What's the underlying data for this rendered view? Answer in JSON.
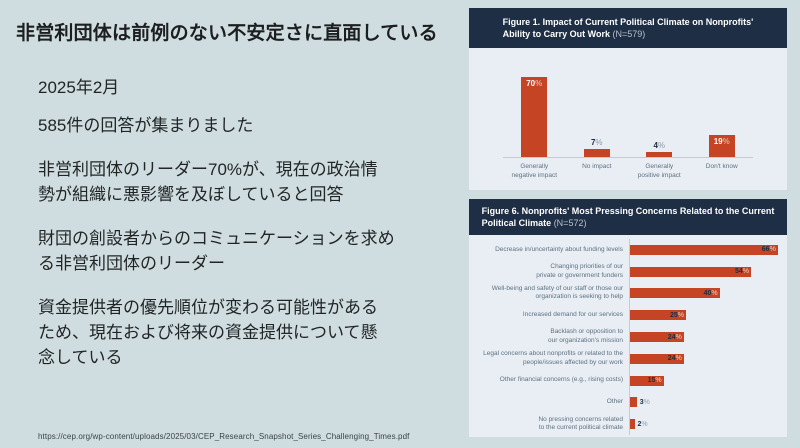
{
  "slide": {
    "title": "非営利団体は前例のない不安定さに直面している",
    "paragraphs": [
      "2025年2月",
      "585件の回答が集まりました",
      "非営利団体のリーダー70%が、現在の政治情\n勢が組織に悪影響を及ぼしていると回答",
      "財団の創設者からのコミュニケーションを求め\nる非営利団体のリーダー",
      "資金提供者の優先順位が変わる可能性がある\nため、現在および将来の資金提供について懸\n念している"
    ],
    "source_url": "https://cep.org/wp-content/uploads/2025/03/CEP_Research_Snapshot_Series_Challenging_Times.pdf"
  },
  "colors": {
    "slide_bg": "#cfdde0",
    "panel_bg": "#e8eef4",
    "header_bg": "#1e2e44",
    "bar_red": "#c54423",
    "muted_label": "#5e7080"
  },
  "chart_data": [
    {
      "id": "figure-1",
      "type": "bar",
      "orientation": "vertical",
      "title_bold": "Figure 1. Impact of Current Political Climate on Nonprofits'\nAbility to Carry Out Work",
      "n_label": " (N=579)",
      "categories": [
        "Generally negative impact",
        "No impact",
        "Generally positive impact",
        "Don't know"
      ],
      "categories_display": [
        "Generally\nnegative impact",
        "No impact",
        "Generally\npositive impact",
        "Don't know"
      ],
      "values": [
        70,
        7,
        4,
        19
      ],
      "unit": "%",
      "ylim": [
        0,
        75
      ],
      "grid": false,
      "bar_color": "#c54423"
    },
    {
      "id": "figure-6",
      "type": "bar",
      "orientation": "horizontal",
      "title_bold": "Figure 6. Nonprofits' Most Pressing Concerns Related to the Current\nPolitical Climate",
      "n_label": " (N=572)",
      "categories": [
        "Decrease in/uncertainty about funding levels",
        "Changing priorities of our private or government funders",
        "Well-being and safety of our staff or those our organization is seeking to help",
        "Increased demand for our services",
        "Backlash or opposition to our organization's mission",
        "Legal concerns about nonprofits or related to the people/issues affected by our work",
        "Other financial concerns (e.g., rising costs)",
        "Other",
        "No pressing concerns related to the current political climate"
      ],
      "categories_display": [
        "Decrease in/uncertainty about funding levels",
        "Changing priorities of our\nprivate or government funders",
        "Well-being and safety of our staff or those our\norganization is seeking to help",
        "Increased demand for our services",
        "Backlash or opposition to\nour organization's mission",
        "Legal concerns about nonprofits or related to the\npeople/issues affected by our work",
        "Other financial concerns (e.g., rising costs)",
        "Other",
        "No pressing concerns related\nto the current political climate"
      ],
      "values": [
        66,
        54,
        40,
        25,
        24,
        24,
        15,
        3,
        2
      ],
      "unit": "%",
      "xlim": [
        0,
        70
      ],
      "grid": false,
      "bar_color": "#c54423"
    }
  ]
}
